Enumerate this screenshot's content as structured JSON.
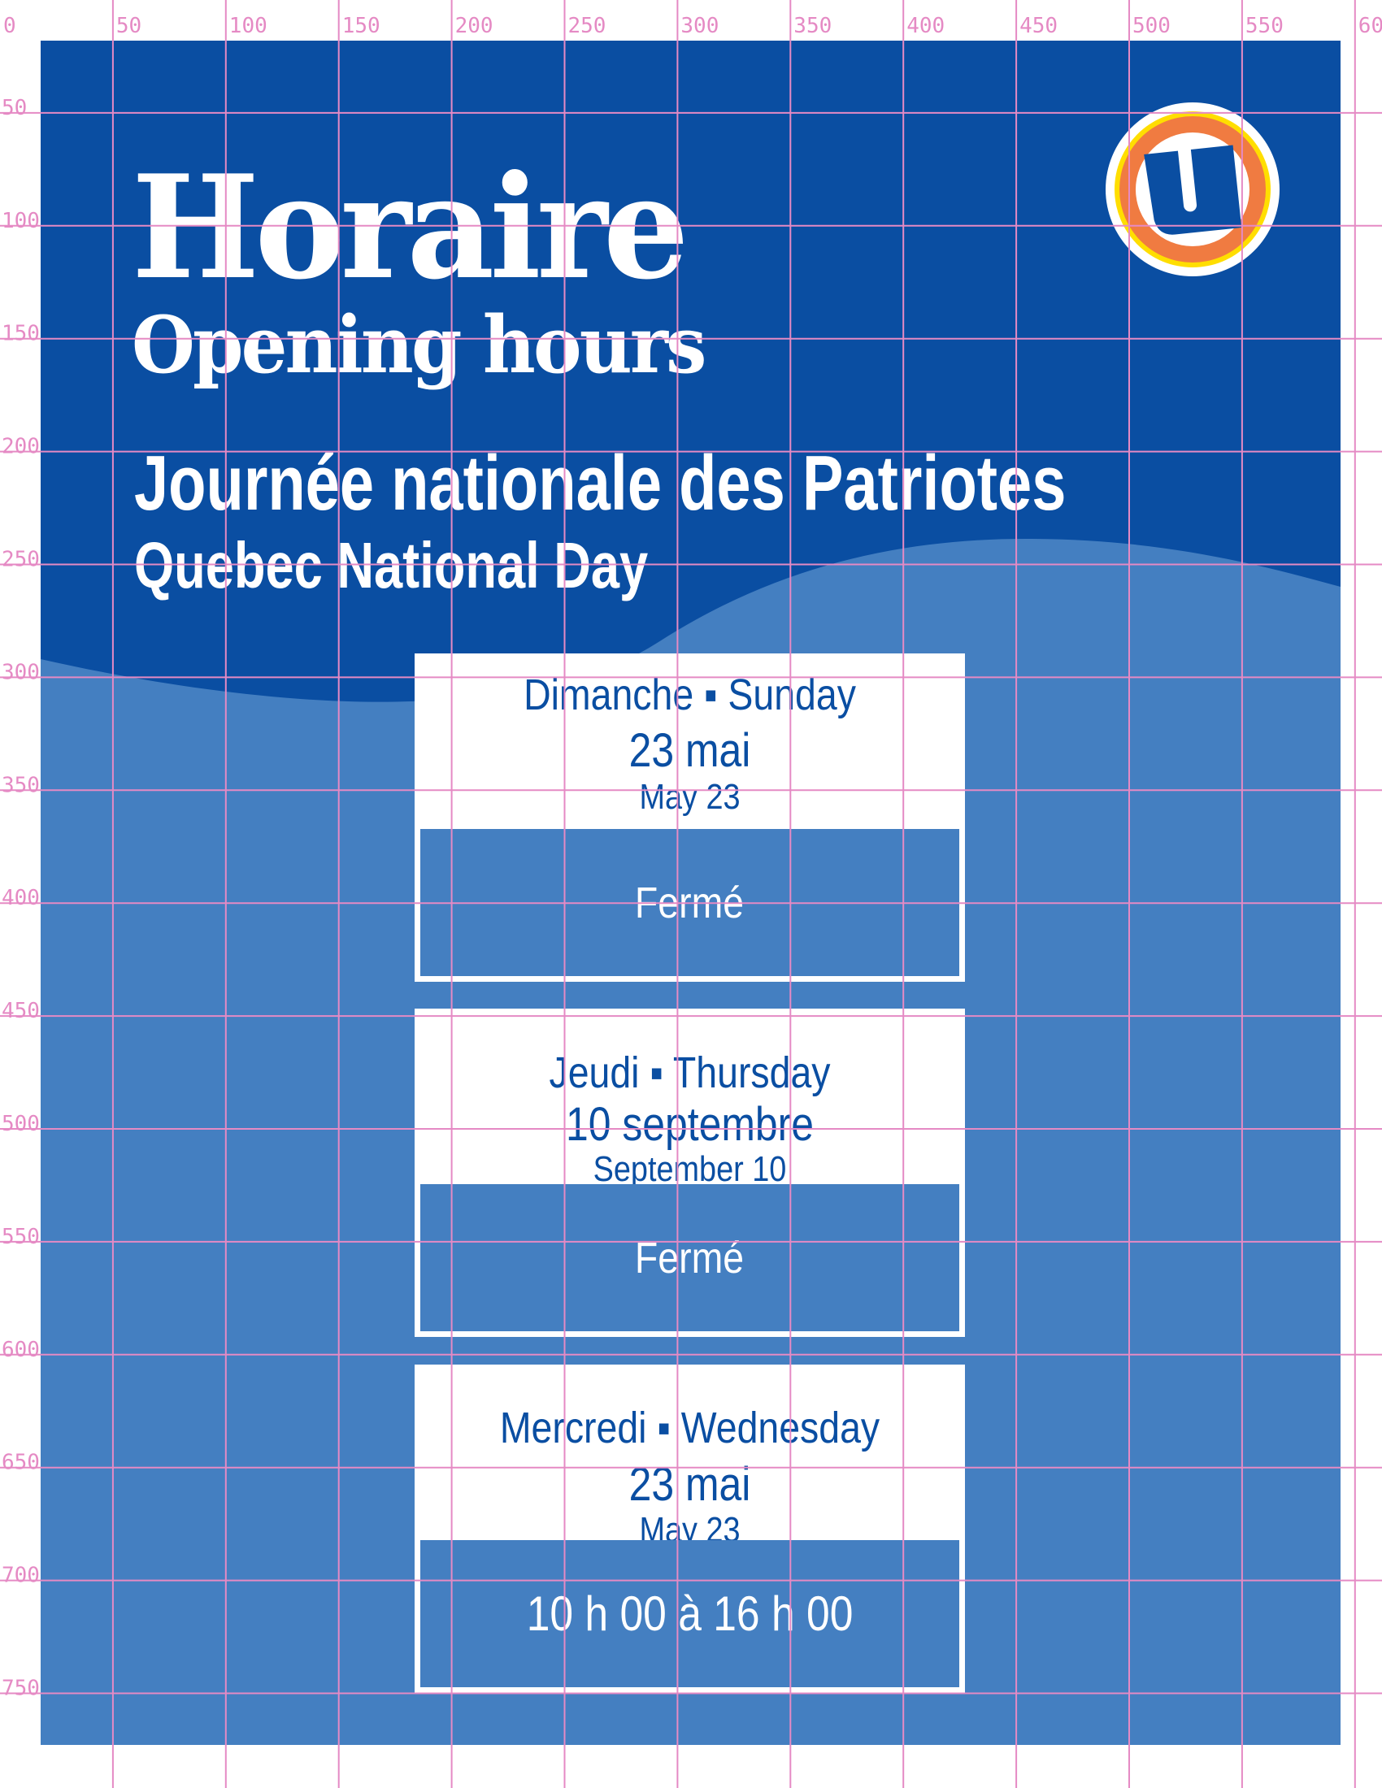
{
  "poster": {
    "title_fr": "Horaire",
    "title_en": "Opening hours",
    "holiday_fr": "Journée nationale des Patriotes",
    "holiday_en": "Quebec National Day",
    "logo_icon": "u-logo-icon",
    "colors": {
      "dark_blue": "#0a4ea2",
      "light_blue": "#447fc1",
      "orange": "#f07b41",
      "yellow": "#ffde00",
      "white": "#ffffff"
    }
  },
  "cards": [
    {
      "day": "Dimanche ▪ Sunday",
      "date_fr": "23 mai",
      "date_en": "May 23",
      "status": "Fermé"
    },
    {
      "day": "Jeudi ▪ Thursday",
      "date_fr": "10 septembre",
      "date_en": "September 10",
      "status": "Fermé"
    },
    {
      "day": "Mercredi ▪ Wednesday",
      "date_fr": "23 mai",
      "date_en": "May 23",
      "status": "10 h 00 à 16 h 00"
    }
  ],
  "grid": {
    "x_labels": [
      "0",
      "50",
      "100",
      "150",
      "200",
      "250",
      "300",
      "350",
      "400",
      "450",
      "500",
      "550",
      "60"
    ],
    "y_labels": [
      "50",
      "100",
      "150",
      "200",
      "250",
      "300",
      "350",
      "400",
      "450",
      "500",
      "550",
      "600",
      "650",
      "700",
      "750"
    ],
    "color": "#e58ac4"
  }
}
